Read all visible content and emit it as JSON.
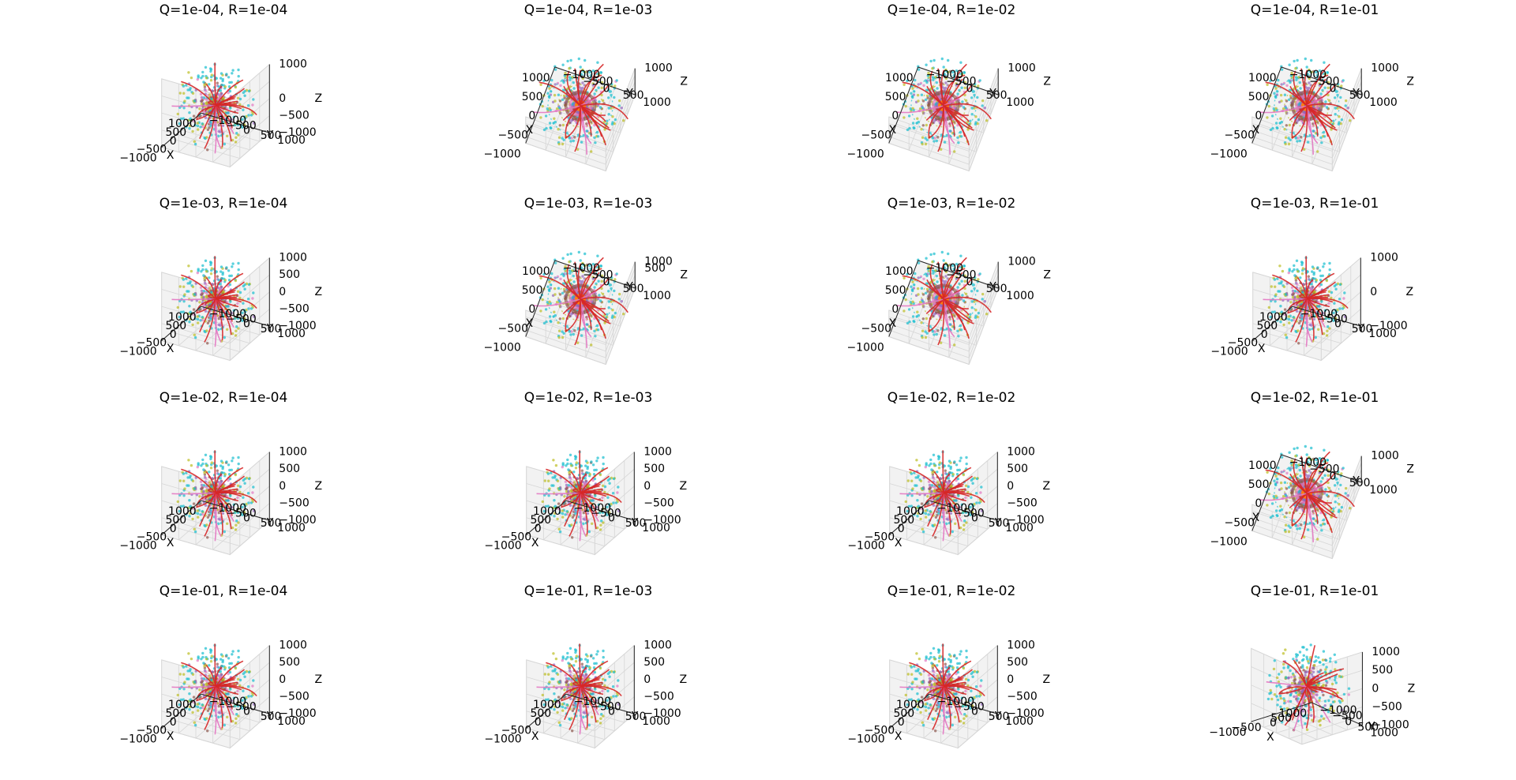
{
  "figure": {
    "rows": 4,
    "cols": 4
  },
  "colors": {
    "pane_fill": "#f2f2f2",
    "pane_edge": "#e0e0e0",
    "grid": "#d6d6d6",
    "axis_line": "#222222",
    "series": [
      "#d62728",
      "#e377c2",
      "#9467bd",
      "#8c564b",
      "#bcbd22",
      "#17becf",
      "#ff7f0e",
      "#2ca02c"
    ]
  },
  "chart_data": [
    {
      "type": "scatter3d",
      "title": "Q=1e-04, R=1e-04",
      "view": "iso",
      "xlabel": "X",
      "ylabel": "Y",
      "zlabel": "Z",
      "xticks": [
        "−1000",
        "−500",
        "0",
        "500",
        "1000"
      ],
      "yticks": [
        "−1000",
        "−500",
        "0",
        "500",
        "1000"
      ],
      "zticks": [
        "−1000",
        "−500",
        "0",
        "1000"
      ],
      "xlim": [
        -1000,
        1000
      ],
      "ylim": [
        -1000,
        1000
      ],
      "zlim": [
        -1000,
        1000
      ]
    },
    {
      "type": "scatter3d",
      "title": "Q=1e-04, R=1e-03",
      "view": "top",
      "xlabel": "X",
      "ylabel": "Y",
      "zlabel": "Z",
      "xticks": [
        "−1000",
        "−500",
        "0",
        "500",
        "1000"
      ],
      "yticks": [
        "−1000",
        "−500",
        "0",
        "500",
        "1000"
      ],
      "zticks": [
        "1000"
      ],
      "xlim": [
        -1000,
        1000
      ],
      "ylim": [
        -1000,
        1000
      ],
      "zlim": [
        -1000,
        1000
      ]
    },
    {
      "type": "scatter3d",
      "title": "Q=1e-04, R=1e-02",
      "view": "top",
      "xlabel": "X",
      "ylabel": "Y",
      "zlabel": "Z",
      "xticks": [
        "−1000",
        "−500",
        "0",
        "500",
        "1000"
      ],
      "yticks": [
        "−1000",
        "−500",
        "0",
        "500",
        "1000"
      ],
      "zticks": [
        "1000"
      ],
      "xlim": [
        -1000,
        1000
      ],
      "ylim": [
        -1000,
        1000
      ],
      "zlim": [
        -1000,
        1000
      ]
    },
    {
      "type": "scatter3d",
      "title": "Q=1e-04, R=1e-01",
      "view": "top",
      "xlabel": "X",
      "ylabel": "Y",
      "zlabel": "Z",
      "xticks": [
        "−1000",
        "−500",
        "0",
        "500",
        "1000"
      ],
      "yticks": [
        "−1000",
        "−500",
        "0",
        "500",
        "1000"
      ],
      "zticks": [
        "1000"
      ],
      "xlim": [
        -1000,
        1000
      ],
      "ylim": [
        -1000,
        1000
      ],
      "zlim": [
        -1000,
        1000
      ]
    },
    {
      "type": "scatter3d",
      "title": "Q=1e-03, R=1e-04",
      "view": "iso",
      "xlabel": "X",
      "ylabel": "Y",
      "zlabel": "Z",
      "xticks": [
        "−1000",
        "−500",
        "0",
        "500",
        "1000"
      ],
      "yticks": [
        "−1000",
        "−500",
        "0",
        "500",
        "1000"
      ],
      "zticks": [
        "−1000",
        "−500",
        "0",
        "500",
        "1000"
      ],
      "xlim": [
        -1000,
        1000
      ],
      "ylim": [
        -1000,
        1000
      ],
      "zlim": [
        -1000,
        1000
      ]
    },
    {
      "type": "scatter3d",
      "title": "Q=1e-03, R=1e-03",
      "view": "top",
      "xlabel": "X",
      "ylabel": "Y",
      "zlabel": "Z",
      "xticks": [
        "−1000",
        "−500",
        "0",
        "500",
        "1000"
      ],
      "yticks": [
        "−1000",
        "−500",
        "0",
        "500",
        "1000"
      ],
      "zticks": [
        "500",
        "1000"
      ],
      "xlim": [
        -1000,
        1000
      ],
      "ylim": [
        -1000,
        1000
      ],
      "zlim": [
        -1000,
        1000
      ]
    },
    {
      "type": "scatter3d",
      "title": "Q=1e-03, R=1e-02",
      "view": "top",
      "xlabel": "X",
      "ylabel": "Y",
      "zlabel": "Z",
      "xticks": [
        "−1000",
        "−500",
        "0",
        "500",
        "1000"
      ],
      "yticks": [
        "−1000",
        "−500",
        "0",
        "500",
        "1000"
      ],
      "zticks": [
        "1000"
      ],
      "xlim": [
        -1000,
        1000
      ],
      "ylim": [
        -1000,
        1000
      ],
      "zlim": [
        -1000,
        1000
      ]
    },
    {
      "type": "scatter3d",
      "title": "Q=1e-03, R=1e-01",
      "view": "iso",
      "xlabel": "X",
      "ylabel": "Y",
      "zlabel": "Z",
      "xticks": [
        "−1000",
        "−500",
        "0",
        "500",
        "1000"
      ],
      "yticks": [
        "−1000",
        "−500",
        "0",
        "500",
        "1000"
      ],
      "zticks": [
        "−1000",
        "0",
        "1000"
      ],
      "xlim": [
        -1000,
        1000
      ],
      "ylim": [
        -1000,
        1000
      ],
      "zlim": [
        -1000,
        1000
      ]
    },
    {
      "type": "scatter3d",
      "title": "Q=1e-02, R=1e-04",
      "view": "iso",
      "xlabel": "X",
      "ylabel": "Y",
      "zlabel": "Z",
      "xticks": [
        "−1000",
        "−500",
        "0",
        "500",
        "1000"
      ],
      "yticks": [
        "−1000",
        "−500",
        "0",
        "500",
        "1000"
      ],
      "zticks": [
        "−1000",
        "−500",
        "0",
        "500",
        "1000"
      ],
      "xlim": [
        -1000,
        1000
      ],
      "ylim": [
        -1000,
        1000
      ],
      "zlim": [
        -1000,
        1000
      ]
    },
    {
      "type": "scatter3d",
      "title": "Q=1e-02, R=1e-03",
      "view": "iso",
      "xlabel": "X",
      "ylabel": "Y",
      "zlabel": "Z",
      "xticks": [
        "−1000",
        "−500",
        "0",
        "500",
        "1000"
      ],
      "yticks": [
        "−1000",
        "−500",
        "0",
        "500",
        "1000"
      ],
      "zticks": [
        "−1000",
        "−500",
        "0",
        "500",
        "1000"
      ],
      "xlim": [
        -1000,
        1000
      ],
      "ylim": [
        -1000,
        1000
      ],
      "zlim": [
        -1000,
        1000
      ]
    },
    {
      "type": "scatter3d",
      "title": "Q=1e-02, R=1e-02",
      "view": "iso",
      "xlabel": "X",
      "ylabel": "Y",
      "zlabel": "Z",
      "xticks": [
        "−1000",
        "−500",
        "0",
        "500",
        "1000"
      ],
      "yticks": [
        "−1000",
        "−500",
        "0",
        "500",
        "1000"
      ],
      "zticks": [
        "−1000",
        "−500",
        "0",
        "500",
        "1000"
      ],
      "xlim": [
        -1000,
        1000
      ],
      "ylim": [
        -1000,
        1000
      ],
      "zlim": [
        -1000,
        1000
      ]
    },
    {
      "type": "scatter3d",
      "title": "Q=1e-02, R=1e-01",
      "view": "top",
      "xlabel": "X",
      "ylabel": "Y",
      "zlabel": "Z",
      "xticks": [
        "−1000",
        "−500",
        "0",
        "500",
        "1000"
      ],
      "yticks": [
        "−1000",
        "−500",
        "0",
        "500",
        "1000"
      ],
      "zticks": [
        "1000"
      ],
      "xlim": [
        -1000,
        1000
      ],
      "ylim": [
        -1000,
        1000
      ],
      "zlim": [
        -1000,
        1000
      ]
    },
    {
      "type": "scatter3d",
      "title": "Q=1e-01, R=1e-04",
      "view": "iso",
      "xlabel": "X",
      "ylabel": "Y",
      "zlabel": "Z",
      "xticks": [
        "−1000",
        "−500",
        "0",
        "500",
        "1000"
      ],
      "yticks": [
        "−1000",
        "−500",
        "0",
        "500",
        "1000"
      ],
      "zticks": [
        "−1000",
        "−500",
        "0",
        "500",
        "1000"
      ],
      "xlim": [
        -1000,
        1000
      ],
      "ylim": [
        -1000,
        1000
      ],
      "zlim": [
        -1000,
        1000
      ]
    },
    {
      "type": "scatter3d",
      "title": "Q=1e-01, R=1e-03",
      "view": "iso",
      "xlabel": "X",
      "ylabel": "Y",
      "zlabel": "Z",
      "xticks": [
        "−1000",
        "−500",
        "0",
        "500",
        "1000"
      ],
      "yticks": [
        "−1000",
        "−500",
        "0",
        "500",
        "1000"
      ],
      "zticks": [
        "−1000",
        "−500",
        "0",
        "500",
        "1000"
      ],
      "xlim": [
        -1000,
        1000
      ],
      "ylim": [
        -1000,
        1000
      ],
      "zlim": [
        -1000,
        1000
      ]
    },
    {
      "type": "scatter3d",
      "title": "Q=1e-01, R=1e-02",
      "view": "iso",
      "xlabel": "X",
      "ylabel": "Y",
      "zlabel": "Z",
      "xticks": [
        "−1000",
        "−500",
        "0",
        "500",
        "1000"
      ],
      "yticks": [
        "−1000",
        "−500",
        "0",
        "500",
        "1000"
      ],
      "zticks": [
        "−1000",
        "−500",
        "0",
        "500",
        "1000"
      ],
      "xlim": [
        -1000,
        1000
      ],
      "ylim": [
        -1000,
        1000
      ],
      "zlim": [
        -1000,
        1000
      ]
    },
    {
      "type": "scatter3d",
      "title": "Q=1e-01, R=1e-01",
      "view": "side",
      "xlabel": "X",
      "ylabel": "Y",
      "zlabel": "Z",
      "xticks": [
        "−1000",
        "−500",
        "0",
        "500",
        "1000"
      ],
      "yticks": [
        "−1000",
        "−500",
        "0",
        "500",
        "1000"
      ],
      "zticks": [
        "−1000",
        "−500",
        "0",
        "500",
        "1000"
      ],
      "xlim": [
        -1000,
        1000
      ],
      "ylim": [
        -1000,
        1000
      ],
      "zlim": [
        -1000,
        1000
      ]
    }
  ]
}
